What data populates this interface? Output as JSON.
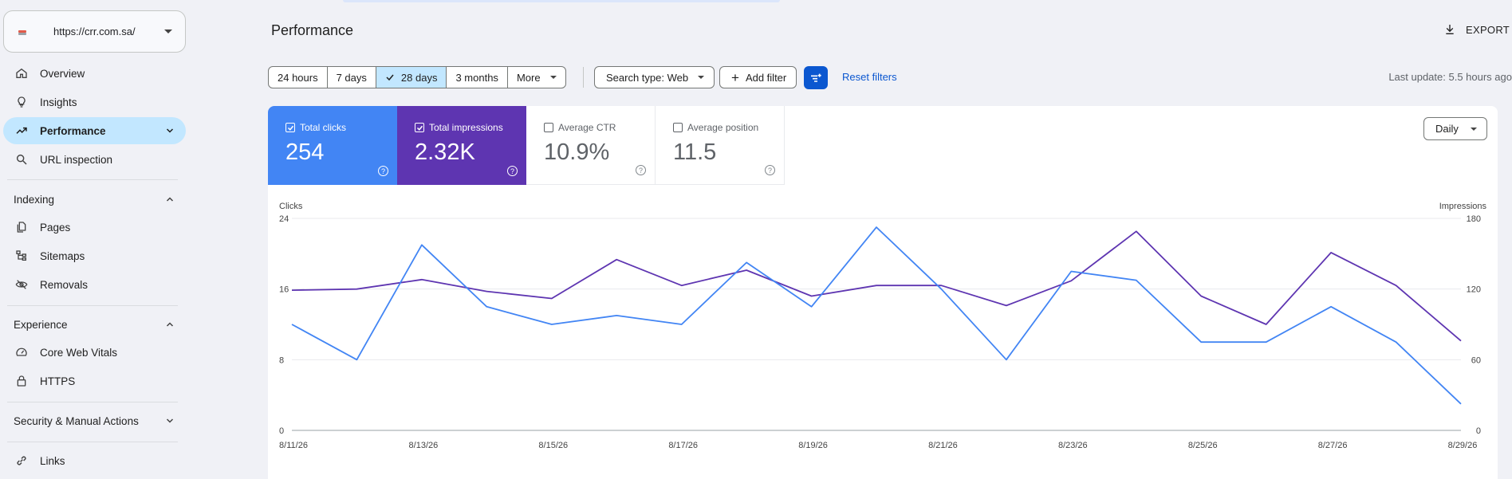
{
  "sidebar": {
    "property_url": "https://crr.com.sa/",
    "nav_top": [
      {
        "label": "Overview",
        "icon": "home-icon"
      },
      {
        "label": "Insights",
        "icon": "lightbulb-icon"
      },
      {
        "label": "Performance",
        "icon": "trending-up-icon",
        "active": true
      },
      {
        "label": "URL inspection",
        "icon": "search-icon"
      }
    ],
    "sections": [
      {
        "label": "Indexing",
        "items": [
          {
            "label": "Pages",
            "icon": "pages-icon"
          },
          {
            "label": "Sitemaps",
            "icon": "sitemap-icon"
          },
          {
            "label": "Removals",
            "icon": "eye-off-icon"
          }
        ]
      },
      {
        "label": "Experience",
        "items": [
          {
            "label": "Core Web Vitals",
            "icon": "speedometer-icon"
          },
          {
            "label": "HTTPS",
            "icon": "lock-icon"
          }
        ]
      },
      {
        "label": "Security & Manual Actions",
        "items": []
      }
    ],
    "links_label": "Links"
  },
  "header": {
    "title": "Performance",
    "export_label": "EXPORT"
  },
  "filters": {
    "ranges": [
      {
        "label": "24 hours"
      },
      {
        "label": "7 days"
      },
      {
        "label": "28 days",
        "selected": true
      },
      {
        "label": "3 months"
      },
      {
        "label": "More"
      }
    ],
    "search_type_label": "Search type: Web",
    "add_filter_label": "Add filter",
    "reset_label": "Reset filters",
    "last_update": "Last update: 5.5 hours ago"
  },
  "metrics": [
    {
      "label": "Total clicks",
      "value": "254",
      "checked": true,
      "color": "#4285f4"
    },
    {
      "label": "Total impressions",
      "value": "2.32K",
      "checked": true,
      "color": "#5e35b1"
    },
    {
      "label": "Average CTR",
      "value": "10.9%",
      "checked": false
    },
    {
      "label": "Average position",
      "value": "11.5",
      "checked": false
    }
  ],
  "granularity": "Daily",
  "chart_data": {
    "type": "line",
    "ylabel_left": "Clicks",
    "ylabel_right": "Impressions",
    "yticks_left": [
      "0",
      "8",
      "16",
      "24"
    ],
    "yticks_right": [
      "0",
      "60",
      "120",
      "180"
    ],
    "ylim_left": [
      0,
      24
    ],
    "ylim_right": [
      0,
      180
    ],
    "x_tick_labels": [
      "8/11/26",
      "8/13/26",
      "8/15/26",
      "8/17/26",
      "8/19/26",
      "8/21/26",
      "8/23/26",
      "8/25/26",
      "8/27/26",
      "8/29/26"
    ],
    "grid": true,
    "series": [
      {
        "name": "Clicks",
        "axis": "left",
        "color": "#4285f4",
        "values": [
          12,
          8,
          21,
          14,
          12,
          13,
          12,
          19,
          14,
          23,
          16,
          8,
          18,
          17,
          10,
          10,
          14,
          10,
          3
        ]
      },
      {
        "name": "Impressions",
        "axis": "right",
        "color": "#5e35b1",
        "values": [
          119,
          120,
          128,
          118,
          112,
          145,
          123,
          136,
          114,
          123,
          123,
          106,
          127,
          169,
          114,
          90,
          151,
          123,
          76
        ]
      }
    ]
  }
}
